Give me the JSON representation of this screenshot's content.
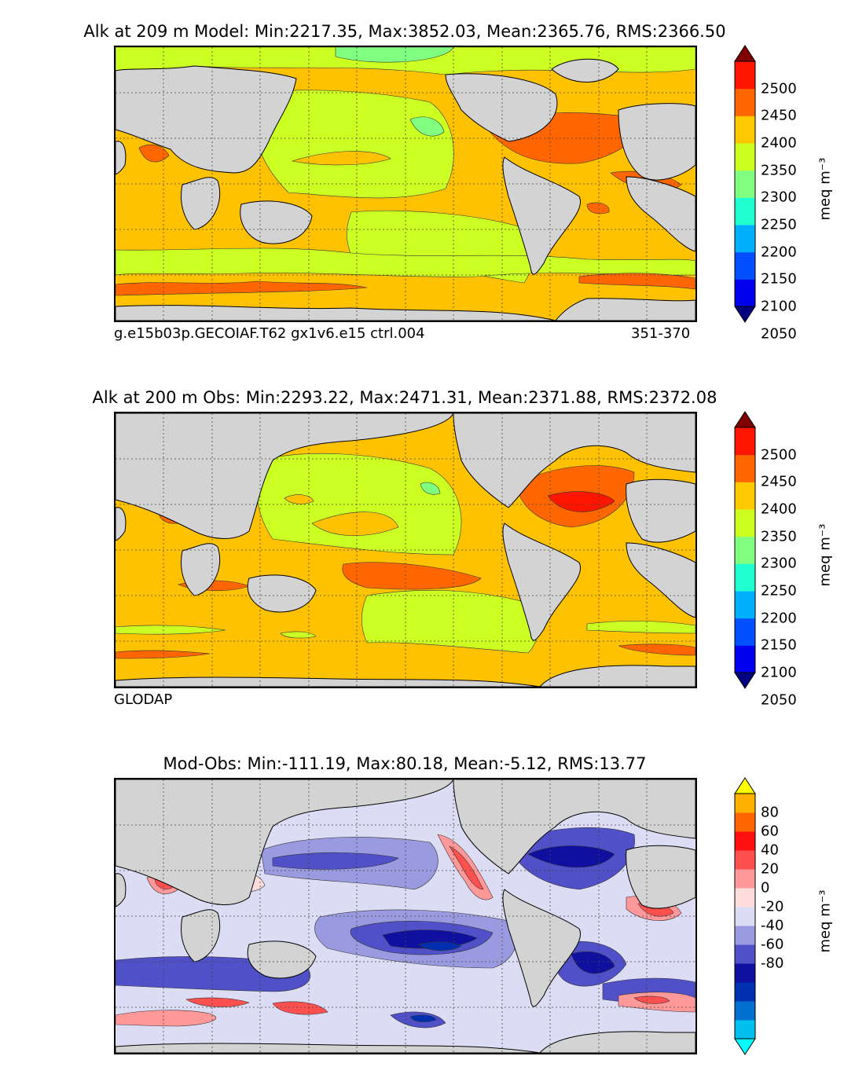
{
  "panels": [
    {
      "title": "Alk at 209 m Model: Min:2217.35, Max:3852.03, Mean:2365.76, RMS:2366.50",
      "caption_left": "g.e15b03p.GECOIAF.T62 gx1v6.e15 ctrl.004",
      "caption_right": "351-370",
      "colorbar": {
        "units_label": "meq m⁻³",
        "tick_labels": [
          "2500",
          "2450",
          "2400",
          "2350",
          "2300",
          "2250",
          "2200",
          "2150",
          "2100",
          "2050"
        ],
        "colors": [
          "#000080",
          "#0000ee",
          "#0050ff",
          "#00b0ff",
          "#20ffd0",
          "#80ff80",
          "#ccff20",
          "#ffc800",
          "#ff6600",
          "#ff1500",
          "#800000"
        ]
      },
      "ocean_fill": "#ffc200"
    },
    {
      "title": "Alk at 200 m Obs: Min:2293.22, Max:2471.31, Mean:2371.88, RMS:2372.08",
      "caption_left": "GLODAP",
      "caption_right": "",
      "colorbar": {
        "units_label": "meq m⁻³",
        "tick_labels": [
          "2500",
          "2450",
          "2400",
          "2350",
          "2300",
          "2250",
          "2200",
          "2150",
          "2100",
          "2050"
        ],
        "colors": [
          "#000080",
          "#0000ee",
          "#0050ff",
          "#00b0ff",
          "#20ffd0",
          "#80ff80",
          "#ccff20",
          "#ffc800",
          "#ff6600",
          "#ff1500",
          "#800000"
        ]
      },
      "ocean_fill": "#ffc200"
    },
    {
      "title": "Mod-Obs: Min:-111.19, Max:80.18, Mean:-5.12, RMS:13.77",
      "caption_left": "",
      "caption_right": "",
      "colorbar": {
        "units_label": "meq m⁻³",
        "tick_labels": [
          "80",
          "60",
          "40",
          "20",
          "0",
          "-20",
          "-40",
          "-60",
          "-80"
        ],
        "colors": [
          "#00ffff",
          "#00c0f0",
          "#0070d0",
          "#0030b0",
          "#1010a0",
          "#5050c8",
          "#9a9ae0",
          "#dcdcf4",
          "#ffdcdc",
          "#ff9898",
          "#ff5050",
          "#ff1010",
          "#ff6600",
          "#ffb000",
          "#ffff00"
        ]
      },
      "ocean_fill": "#dcdcf4"
    }
  ],
  "land_color": "#d3d3d3"
}
